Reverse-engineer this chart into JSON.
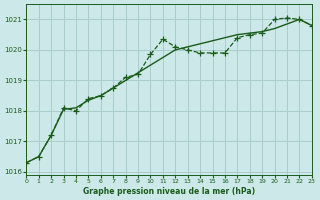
{
  "title": "Graphe pression niveau de la mer (hPa)",
  "bg_color": "#cce8e8",
  "line_color": "#1a5c1a",
  "grid_color": "#aacccc",
  "xlim": [
    0,
    23
  ],
  "ylim": [
    1015.9,
    1021.5
  ],
  "yticks": [
    1016,
    1017,
    1018,
    1019,
    1020,
    1021
  ],
  "xticks": [
    0,
    1,
    2,
    3,
    4,
    5,
    6,
    7,
    8,
    9,
    10,
    11,
    12,
    13,
    14,
    15,
    16,
    17,
    18,
    19,
    20,
    21,
    22,
    23
  ],
  "series1_x": [
    0,
    1,
    2,
    3,
    4,
    5,
    6,
    7,
    8,
    9,
    10,
    11,
    12,
    13,
    14,
    15,
    16,
    17,
    18,
    19,
    20,
    21,
    22,
    23
  ],
  "series1_y": [
    1016.3,
    1016.5,
    1017.2,
    1018.1,
    1018.0,
    1018.4,
    1018.5,
    1018.75,
    1019.1,
    1019.2,
    1019.85,
    1020.35,
    1020.1,
    1020.0,
    1019.9,
    1019.9,
    1019.9,
    1020.4,
    1020.5,
    1020.55,
    1021.0,
    1021.05,
    1021.0,
    1020.8
  ],
  "series2_x": [
    0,
    1,
    2,
    3,
    4,
    5,
    6,
    7,
    8,
    9,
    10,
    11,
    12,
    13,
    14,
    15,
    16,
    17,
    18,
    19,
    20,
    21,
    22,
    23
  ],
  "series2_y": [
    1016.3,
    1016.5,
    1017.2,
    1018.05,
    1018.1,
    1018.35,
    1018.5,
    1018.75,
    1019.0,
    1019.25,
    1019.5,
    1019.75,
    1020.0,
    1020.1,
    1020.2,
    1020.3,
    1020.4,
    1020.5,
    1020.55,
    1020.6,
    1020.7,
    1020.85,
    1021.0,
    1020.8
  ]
}
